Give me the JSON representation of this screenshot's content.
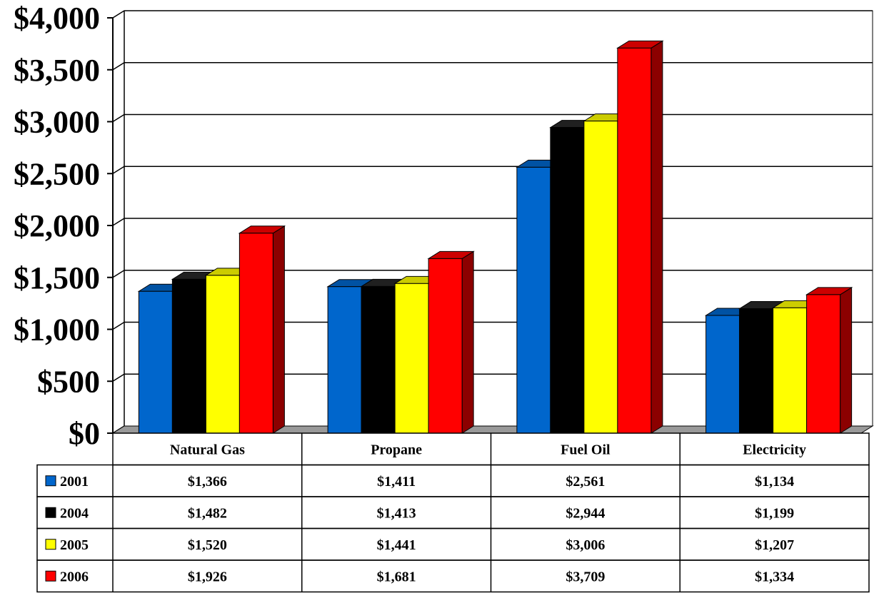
{
  "chart_data": {
    "type": "bar",
    "style": "3d-clustered-column-with-data-table",
    "categories": [
      "Natural Gas",
      "Propane",
      "Fuel Oil",
      "Electricity"
    ],
    "series": [
      {
        "name": "2001",
        "color": "#0066cc",
        "values": [
          1366,
          1411,
          2561,
          1134
        ],
        "labels": [
          "$1,366",
          "$1,411",
          "$2,561",
          "$1,134"
        ]
      },
      {
        "name": "2004",
        "color": "#000000",
        "values": [
          1482,
          1413,
          2944,
          1199
        ],
        "labels": [
          "$1,482",
          "$1,413",
          "$2,944",
          "$1,199"
        ]
      },
      {
        "name": "2005",
        "color": "#ffff00",
        "values": [
          1520,
          1441,
          3006,
          1207
        ],
        "labels": [
          "$1,520",
          "$1,441",
          "$3,006",
          "$1,207"
        ]
      },
      {
        "name": "2006",
        "color": "#ff0000",
        "values": [
          1926,
          1681,
          3709,
          1334
        ],
        "labels": [
          "$1,926",
          "$1,681",
          "$3,709",
          "$1,334"
        ]
      }
    ],
    "ylim": [
      0,
      4000
    ],
    "yticks": [
      0,
      500,
      1000,
      1500,
      2000,
      2500,
      3000,
      3500,
      4000
    ],
    "ytick_labels": [
      "$0",
      "$500",
      "$1,000",
      "$1,500",
      "$2,000",
      "$2,500",
      "$3,000",
      "$3,500",
      "$4,000"
    ],
    "grid": true,
    "legend": "data-table-left",
    "title": "",
    "xlabel": "",
    "ylabel": ""
  }
}
